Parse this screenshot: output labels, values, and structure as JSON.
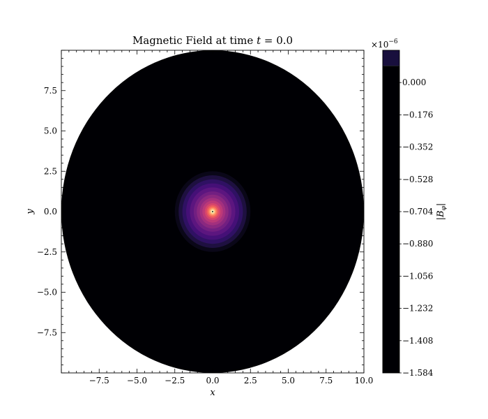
{
  "chart_data": {
    "type": "heatmap",
    "subtype": "filled-contour",
    "title_prefix": "Magnetic Field at time ",
    "title_var": "t",
    "title_suffix": " = 0.0",
    "xlabel": "x",
    "ylabel": "y",
    "xlim": [
      -10.0,
      10.0
    ],
    "ylim": [
      -10.0,
      10.0
    ],
    "domain_radius": 10.0,
    "x_ticks": [
      -7.5,
      -5.0,
      -2.5,
      0.0,
      2.5,
      5.0,
      7.5,
      10.0
    ],
    "x_tick_labels": [
      "−7.5",
      "−5.0",
      "−2.5",
      "0.0",
      "2.5",
      "5.0",
      "7.5",
      "10.0"
    ],
    "y_ticks": [
      7.5,
      5.0,
      2.5,
      0.0,
      -2.5,
      -5.0,
      -7.5
    ],
    "y_tick_labels": [
      "7.5",
      "5.0",
      "2.5",
      "0.0",
      "−2.5",
      "−5.0",
      "−7.5"
    ],
    "minor_tick_step": 0.5,
    "colormap": "magma",
    "colormap_stops": [
      "#000004",
      "#180f3d",
      "#440f76",
      "#721f81",
      "#9e2f7f",
      "#cd4071",
      "#f1605d",
      "#fd9668",
      "#feca8d",
      "#fcfdbf"
    ],
    "colorbar": {
      "label_sym": "B",
      "label_sub": "φ",
      "multiplier_base": "×10",
      "multiplier_exp": "−6",
      "ticks": [
        0.0,
        -0.176,
        -0.352,
        -0.528,
        -0.704,
        -0.88,
        -1.056,
        -1.232,
        -1.408,
        -1.584
      ],
      "tick_labels": [
        "0.000",
        "−0.176",
        "−0.352",
        "−0.528",
        "−0.704",
        "−0.880",
        "−1.056",
        "−1.232",
        "−1.408",
        "−1.584"
      ],
      "vmin": -1.584,
      "vmax": 0.176,
      "top_band_color": "#180f3d",
      "main_color": "#000004"
    },
    "core_rings": [
      {
        "r": 2.5,
        "color": "#0a0718"
      },
      {
        "r": 2.25,
        "color": "#1e1040"
      },
      {
        "r": 2.0,
        "color": "#2f1163"
      },
      {
        "r": 1.75,
        "color": "#451077"
      },
      {
        "r": 1.5,
        "color": "#5c167f"
      },
      {
        "r": 1.25,
        "color": "#721f81"
      },
      {
        "r": 1.05,
        "color": "#8a2880"
      },
      {
        "r": 0.85,
        "color": "#a3307e"
      },
      {
        "r": 0.68,
        "color": "#bc3978"
      },
      {
        "r": 0.52,
        "color": "#d6456c"
      },
      {
        "r": 0.4,
        "color": "#ec5a5f"
      },
      {
        "r": 0.3,
        "color": "#f97b5d"
      },
      {
        "r": 0.22,
        "color": "#fe9f6d"
      },
      {
        "r": 0.16,
        "color": "#fec287"
      },
      {
        "r": 0.11,
        "color": "#fde2a3"
      },
      {
        "r": 0.08,
        "color": "#fcfdbf"
      },
      {
        "r": 0.05,
        "color": "#000004"
      },
      {
        "r": 0.025,
        "color": "#fcfdbf"
      }
    ]
  }
}
